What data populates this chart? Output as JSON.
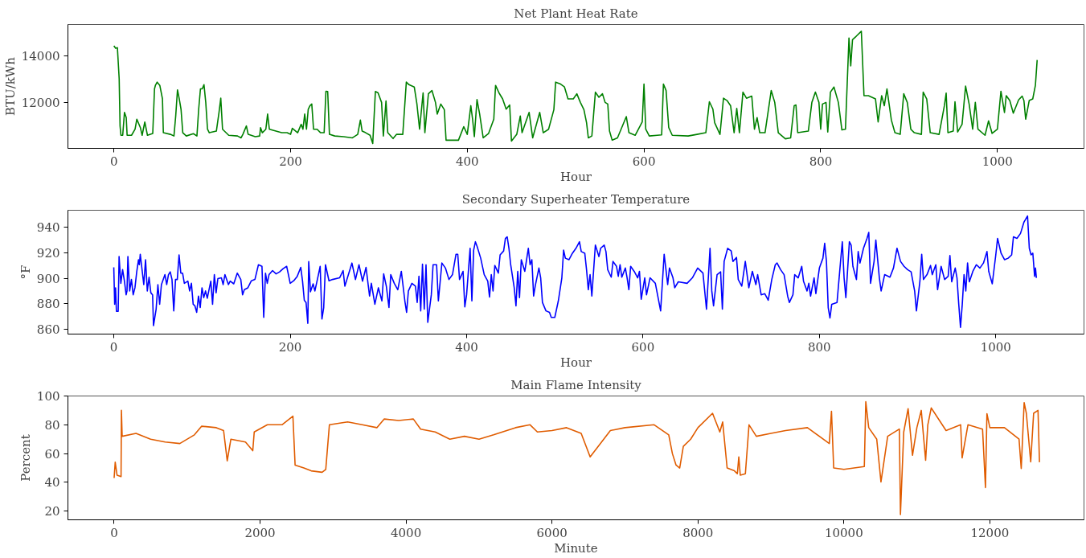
{
  "chart_data": [
    {
      "type": "line",
      "title": "Net Plant Heat Rate",
      "xlabel": "Hour",
      "ylabel": "BTU/kWh",
      "xlim": [
        -52,
        1098
      ],
      "ylim": [
        10040,
        15350
      ],
      "xticks": [
        0,
        200,
        400,
        600,
        800,
        1000
      ],
      "yticks": [
        12000,
        14000
      ],
      "x": [
        0,
        2,
        4,
        6,
        7,
        8,
        10,
        12,
        14,
        15,
        20,
        24,
        26,
        30,
        32,
        35,
        38,
        44,
        46,
        47,
        49,
        52,
        55,
        56,
        64,
        68,
        70,
        72,
        74,
        76,
        78,
        82,
        90,
        94,
        96,
        98,
        100,
        102,
        104,
        106,
        108,
        116,
        119,
        121,
        123,
        130,
        140,
        144,
        146,
        150,
        152,
        160,
        165,
        166,
        168,
        172,
        174,
        176,
        190,
        196,
        200,
        202,
        208,
        212,
        214,
        216,
        218,
        220,
        222,
        224,
        226,
        230,
        234,
        238,
        240,
        242,
        244,
        250,
        260,
        270,
        276,
        279,
        281,
        285,
        290,
        293,
        296,
        299,
        303,
        305,
        308,
        310,
        316,
        320,
        327,
        331,
        334,
        340,
        343,
        346,
        350,
        352,
        356,
        360,
        364,
        366,
        370,
        374,
        376,
        390,
        396,
        400,
        404,
        406,
        408,
        411,
        414,
        418,
        424,
        430,
        432,
        436,
        440,
        444,
        448,
        450,
        456,
        460,
        462,
        470,
        474,
        482,
        486,
        492,
        498,
        500,
        505,
        510,
        514,
        520,
        524,
        528,
        532,
        535,
        537,
        541,
        545,
        549,
        553,
        556,
        559,
        561,
        564,
        570,
        580,
        583,
        590,
        598,
        600,
        602,
        606,
        615,
        620,
        622,
        625,
        628,
        632,
        650,
        660,
        670,
        674,
        678,
        680,
        686,
        690,
        694,
        698,
        702,
        705,
        708,
        712,
        716,
        722,
        725,
        728,
        731,
        737,
        744,
        748,
        752,
        760,
        766,
        770,
        772,
        774,
        786,
        790,
        794,
        798,
        800,
        802,
        806,
        808,
        811,
        815,
        820,
        824,
        828,
        832,
        834,
        836,
        840,
        846,
        849,
        854,
        862,
        865,
        869,
        872,
        875,
        880,
        884,
        890,
        894,
        898,
        902,
        906,
        914,
        916,
        920,
        924,
        934,
        940,
        942,
        944,
        950,
        952,
        955,
        960,
        964,
        968,
        972,
        975,
        978,
        986,
        990,
        994,
        1000,
        1004,
        1008,
        1010,
        1014,
        1018,
        1024,
        1028,
        1030,
        1032,
        1036,
        1040,
        1043,
        1045
      ],
      "series": [
        {
          "color": "#008000",
          "values": [
            14435,
            14330,
            14360,
            13030,
            11000,
            10600,
            10600,
            11580,
            11360,
            10600,
            10600,
            10860,
            11290,
            10930,
            10600,
            11170,
            10600,
            10680,
            12590,
            12740,
            12880,
            12740,
            12160,
            10710,
            10640,
            10570,
            11430,
            12550,
            12160,
            11720,
            10710,
            10570,
            10670,
            10570,
            11720,
            12590,
            12590,
            12770,
            12010,
            10860,
            10710,
            10780,
            11580,
            12190,
            10860,
            10600,
            10570,
            10490,
            10640,
            11000,
            10640,
            10540,
            10570,
            10930,
            10710,
            10860,
            11510,
            10860,
            10710,
            10710,
            10640,
            10900,
            10710,
            11070,
            10860,
            11510,
            10860,
            11720,
            11870,
            11940,
            10860,
            10860,
            10710,
            10710,
            12490,
            12480,
            10640,
            10570,
            10540,
            10490,
            10640,
            11250,
            10780,
            10710,
            10600,
            10250,
            12480,
            12420,
            12010,
            10570,
            12070,
            10710,
            10460,
            10640,
            10640,
            12880,
            12770,
            12670,
            11940,
            10860,
            12420,
            10710,
            12380,
            12520,
            12010,
            11510,
            11940,
            11700,
            10390,
            10390,
            10970,
            10640,
            11870,
            11290,
            10540,
            12130,
            11510,
            10490,
            10670,
            11290,
            12740,
            12410,
            12160,
            11720,
            11900,
            10350,
            10640,
            11430,
            10710,
            11580,
            10490,
            11580,
            10710,
            10860,
            11700,
            12880,
            12810,
            12670,
            12160,
            12160,
            12380,
            12010,
            11700,
            11140,
            10490,
            10570,
            12450,
            12230,
            12380,
            12010,
            11940,
            10780,
            10390,
            10490,
            11400,
            10710,
            10600,
            11170,
            12800,
            10860,
            10570,
            10600,
            10620,
            12800,
            12520,
            10930,
            10600,
            10570,
            10640,
            10710,
            12040,
            11720,
            11140,
            10640,
            12190,
            12090,
            11870,
            10710,
            11750,
            10710,
            12450,
            12190,
            12280,
            10860,
            11360,
            10710,
            10710,
            12520,
            12010,
            10710,
            10450,
            10490,
            11870,
            11900,
            10710,
            10780,
            12010,
            12450,
            12010,
            10860,
            11940,
            12010,
            10740,
            12450,
            12670,
            12010,
            10830,
            10860,
            14770,
            13580,
            14700,
            14840,
            15060,
            12300,
            12300,
            12160,
            11170,
            12300,
            11870,
            12590,
            11250,
            10710,
            10640,
            12380,
            12010,
            10860,
            10710,
            10640,
            12450,
            12160,
            10710,
            10640,
            11870,
            12410,
            10710,
            10780,
            12040,
            10740,
            11070,
            12710,
            11940,
            10860,
            12010,
            10860,
            10600,
            11220,
            10680,
            10860,
            12490,
            11580,
            12300,
            12090,
            11550,
            12120,
            12280,
            12090,
            11290,
            12090,
            12160,
            12740,
            13830
          ]
        }
      ]
    },
    {
      "type": "line",
      "title": "Secondary Superheater Temperature",
      "xlabel": "Hour",
      "ylabel": "°F",
      "xlim": [
        -52,
        1100
      ],
      "ylim": [
        856.2,
        953.3
      ],
      "xticks": [
        0,
        200,
        400,
        600,
        800,
        1000
      ],
      "yticks": [
        860,
        880,
        900,
        920,
        940
      ],
      "x": [
        0,
        1,
        2,
        3,
        5,
        6,
        8,
        10,
        12,
        14,
        15,
        16,
        18,
        20,
        22,
        24,
        26,
        28,
        29,
        30,
        34,
        36,
        38,
        40,
        42,
        44,
        45,
        48,
        50,
        52,
        54,
        58,
        60,
        62,
        64,
        66,
        68,
        70,
        72,
        74,
        76,
        78,
        80,
        84,
        86,
        88,
        90,
        92,
        94,
        96,
        98,
        100,
        102,
        104,
        106,
        110,
        112,
        114,
        116,
        118,
        122,
        124,
        126,
        130,
        132,
        136,
        140,
        144,
        146,
        148,
        152,
        156,
        160,
        164,
        168,
        170,
        172,
        174,
        176,
        180,
        184,
        188,
        192,
        196,
        198,
        200,
        204,
        208,
        212,
        214,
        216,
        218,
        220,
        221,
        223,
        226,
        228,
        232,
        234,
        236,
        238,
        240,
        244,
        248,
        256,
        260,
        262,
        266,
        270,
        274,
        278,
        282,
        286,
        290,
        292,
        296,
        300,
        304,
        306,
        309,
        312,
        314,
        318,
        322,
        326,
        330,
        332,
        334,
        338,
        342,
        344,
        346,
        348,
        350,
        352,
        354,
        356,
        360,
        362,
        366,
        368,
        372,
        376,
        380,
        384,
        388,
        390,
        392,
        396,
        398,
        400,
        404,
        406,
        408,
        410,
        412,
        416,
        420,
        424,
        426,
        428,
        430,
        432,
        436,
        438,
        442,
        444,
        446,
        448,
        450,
        454,
        456,
        458,
        460,
        462,
        466,
        470,
        472,
        474,
        476,
        478,
        482,
        484,
        486,
        490,
        494,
        496,
        500,
        504,
        508,
        510,
        512,
        516,
        520,
        524,
        528,
        530,
        534,
        536,
        538,
        540,
        542,
        546,
        550,
        552,
        556,
        558,
        560,
        564,
        566,
        570,
        572,
        574,
        576,
        580,
        582,
        584,
        586,
        590,
        594,
        596,
        598,
        602,
        604,
        608,
        614,
        620,
        624,
        628,
        630,
        634,
        636,
        640,
        650,
        656,
        662,
        668,
        672,
        676,
        678,
        680,
        684,
        688,
        690,
        692,
        696,
        700,
        702,
        706,
        708,
        712,
        716,
        720,
        724,
        728,
        730,
        734,
        738,
        742,
        746,
        750,
        752,
        756,
        760,
        764,
        766,
        770,
        772,
        776,
        780,
        782,
        786,
        788,
        790,
        794,
        796,
        800,
        804,
        806,
        808,
        810,
        812,
        814,
        820,
        824,
        826,
        828,
        830,
        834,
        836,
        838,
        842,
        844,
        846,
        850,
        854,
        856,
        858,
        862,
        864,
        868,
        870,
        874,
        880,
        884,
        888,
        892,
        896,
        900,
        904,
        908,
        910,
        914,
        916,
        918,
        922,
        926,
        928,
        932,
        934,
        938,
        942,
        946,
        948,
        950,
        954,
        956,
        958,
        960,
        962,
        964,
        966,
        968,
        970,
        974,
        978,
        982,
        986,
        990,
        992,
        996,
        1000,
        1002,
        1006,
        1010,
        1014,
        1018,
        1020,
        1024,
        1028,
        1032,
        1036,
        1038,
        1040,
        1042,
        1044,
        1045,
        1046
      ],
      "series": [
        {
          "color": "#0000ff",
          "values": [
            908.5,
            879.6,
            892.5,
            874,
            874,
            917,
            896,
            906.7,
            898,
            887,
            890,
            917,
            890,
            899,
            887,
            892.5,
            905,
            914.5,
            910.6,
            918.8,
            895,
            914.5,
            890,
            900.8,
            888.6,
            887,
            862.8,
            875.7,
            895,
            879.6,
            895,
            902.8,
            895,
            902.8,
            905,
            899,
            874.4,
            899,
            899,
            918.3,
            904,
            904,
            896,
            897.7,
            890,
            896,
            879.6,
            878.3,
            873.2,
            886,
            877,
            892.5,
            884.8,
            890,
            884.3,
            897.7,
            879.6,
            902.8,
            888.6,
            899.7,
            900.3,
            895,
            902.8,
            895,
            897.7,
            895.6,
            904,
            899,
            887,
            891,
            892.5,
            898,
            899,
            910.6,
            909.3,
            869.3,
            904,
            896,
            902.8,
            906,
            903.4,
            905,
            907.5,
            909.3,
            902.8,
            896,
            898,
            901.5,
            908.5,
            897.7,
            882.7,
            881,
            864.6,
            913,
            889.4,
            895.6,
            890,
            902.8,
            909.3,
            868,
            877,
            910.6,
            898,
            899,
            900.3,
            906,
            893.8,
            902.8,
            911.9,
            899,
            910.6,
            897.7,
            908.5,
            886,
            896,
            879.6,
            892.5,
            882.2,
            903.4,
            893.8,
            877,
            902.8,
            896,
            891,
            905.4,
            882.2,
            873.2,
            890,
            896,
            893.8,
            881,
            901.5,
            874.4,
            911,
            875.7,
            910.6,
            865.4,
            887,
            910.6,
            910.6,
            882.2,
            911.9,
            908,
            899,
            902.8,
            918.8,
            918.8,
            899,
            905.4,
            877.5,
            887,
            923.5,
            882.2,
            922,
            928.6,
            924.8,
            915.7,
            902.8,
            897.7,
            885.3,
            902.8,
            890,
            910,
            904,
            918.3,
            921.4,
            931.2,
            932.5,
            923.5,
            910.6,
            892.5,
            878.3,
            905.4,
            884.8,
            914.5,
            905.4,
            923.5,
            910.6,
            914.5,
            886,
            894.6,
            908,
            900.3,
            881,
            874.4,
            873.2,
            869.3,
            869.3,
            882.2,
            900.3,
            922,
            915.7,
            914.5,
            919.6,
            923.5,
            928.6,
            920.9,
            919.6,
            906.7,
            891,
            902.8,
            886,
            926,
            917,
            923.5,
            926,
            920.9,
            906.7,
            900.8,
            913.2,
            909.3,
            901.5,
            910.6,
            900.8,
            908,
            900.3,
            891,
            909.3,
            905.4,
            900.3,
            905.4,
            883.5,
            900.3,
            887,
            900.3,
            896,
            874.4,
            918.8,
            895,
            908,
            900.3,
            892.5,
            897.2,
            896,
            900.3,
            908,
            904,
            875.7,
            923.5,
            890,
            878.3,
            902.8,
            905,
            875.7,
            913.2,
            923.5,
            921.4,
            913.2,
            916.3,
            899,
            893.8,
            913.2,
            892.5,
            905.4,
            895,
            902.8,
            887,
            887.9,
            882.7,
            899,
            910.6,
            911.9,
            906.7,
            902.8,
            886,
            881,
            887,
            902.8,
            900.3,
            909.3,
            897.7,
            890,
            896,
            886,
            900.3,
            887.9,
            908,
            915.7,
            927.4,
            913.2,
            877,
            868.8,
            879.6,
            881,
            913.2,
            928.6,
            900.3,
            884.8,
            928.6,
            926,
            909.3,
            899,
            920.9,
            911.9,
            923.5,
            931.2,
            935.9,
            896,
            913.2,
            929.9,
            900.3,
            890,
            902.8,
            900.8,
            908,
            923.5,
            913.2,
            909.3,
            906.7,
            905,
            890,
            874.4,
            897.7,
            918.8,
            899,
            902.8,
            910,
            902.8,
            910.6,
            891,
            909.3,
            899,
            901.5,
            917.8,
            897.2,
            908,
            900.3,
            879.6,
            861.5,
            879.6,
            902.8,
            890,
            911.9,
            897.2,
            905.4,
            910.6,
            908,
            911.9,
            920.9,
            905.4,
            895.6,
            918.3,
            931.2,
            919.6,
            914.5,
            915.7,
            918.3,
            932.5,
            931.2,
            935.1,
            944.1,
            948.8,
            923.5,
            918.3,
            919.6,
            901.5,
            908,
            900.3
          ]
        }
      ]
    },
    {
      "type": "line",
      "title": "Main Flame Intensity",
      "xlabel": "Minute",
      "ylabel": "Percent",
      "xlim": [
        -633,
        13290
      ],
      "ylim": [
        14,
        100
      ],
      "xticks": [
        0,
        2000,
        4000,
        6000,
        8000,
        10000,
        12000
      ],
      "yticks": [
        20,
        40,
        60,
        80,
        100
      ],
      "x": [
        0,
        15,
        40,
        95,
        100,
        110,
        300,
        500,
        700,
        900,
        1100,
        1200,
        1400,
        1500,
        1550,
        1600,
        1800,
        1900,
        1920,
        2100,
        2300,
        2450,
        2480,
        2600,
        2700,
        2850,
        2900,
        2950,
        3200,
        3400,
        3600,
        3700,
        3900,
        4100,
        4200,
        4400,
        4600,
        4800,
        5000,
        5200,
        5500,
        5700,
        5800,
        6000,
        6200,
        6400,
        6523,
        6800,
        7000,
        7400,
        7600,
        7650,
        7700,
        7750,
        7800,
        7900,
        8000,
        8200,
        8300,
        8339,
        8400,
        8500,
        8540,
        8560,
        8580,
        8650,
        8700,
        8800,
        9000,
        9200,
        9500,
        9800,
        9830,
        9860,
        10000,
        10280,
        10300,
        10340,
        10450,
        10508,
        10600,
        10760,
        10775,
        10820,
        10880,
        10940,
        11000,
        11060,
        11120,
        11150,
        11197,
        11400,
        11600,
        11620,
        11700,
        11900,
        11940,
        11960,
        12000,
        12200,
        12400,
        12430,
        12470,
        12500,
        12560,
        12600,
        12660,
        12680
      ],
      "series": [
        {
          "color": "#e05c00",
          "values": [
            43,
            54,
            45,
            44,
            90,
            72,
            74,
            70,
            68,
            67,
            73,
            79,
            78,
            76,
            55,
            70,
            68,
            62,
            75,
            80,
            80,
            86,
            52,
            50,
            48,
            47,
            49,
            80,
            82,
            80,
            78,
            84,
            83,
            84,
            77,
            75,
            70,
            72,
            70,
            73,
            78,
            80,
            75,
            76,
            78,
            74,
            57.7,
            76,
            78,
            80,
            73,
            60,
            52,
            50,
            65,
            70,
            78,
            88,
            75,
            82,
            50,
            48,
            46,
            57.7,
            45,
            46,
            80,
            72,
            74,
            76,
            78,
            67,
            89.4,
            50,
            49,
            51,
            96,
            78,
            70,
            40.3,
            72,
            77,
            17.7,
            75,
            91.2,
            58.8,
            78,
            90,
            55.4,
            80,
            91.7,
            76,
            80,
            57,
            80,
            77,
            36.4,
            87.7,
            78,
            78,
            70,
            49.6,
            95.4,
            88,
            54.2,
            88,
            90,
            54
          ]
        }
      ]
    }
  ]
}
